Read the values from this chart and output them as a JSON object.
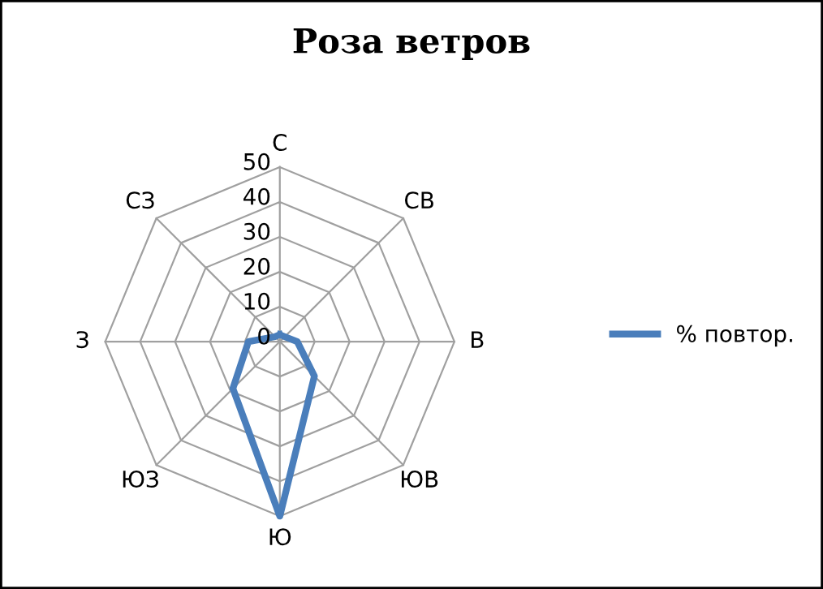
{
  "chart_data": {
    "type": "radar",
    "title": "Роза ветров",
    "categories": [
      "С",
      "СВ",
      "В",
      "ЮВ",
      "Ю",
      "ЮЗ",
      "З",
      "СЗ"
    ],
    "series": [
      {
        "name": "% повтор.",
        "color": "#4a7ebb",
        "values": [
          2,
          2,
          5,
          14,
          50,
          19,
          9,
          2
        ]
      }
    ],
    "ylim": [
      0,
      50
    ],
    "yticks": [
      0,
      10,
      20,
      30,
      40,
      50
    ],
    "legend": "right",
    "grid": true,
    "marker": "none",
    "line_style": "solid"
  }
}
